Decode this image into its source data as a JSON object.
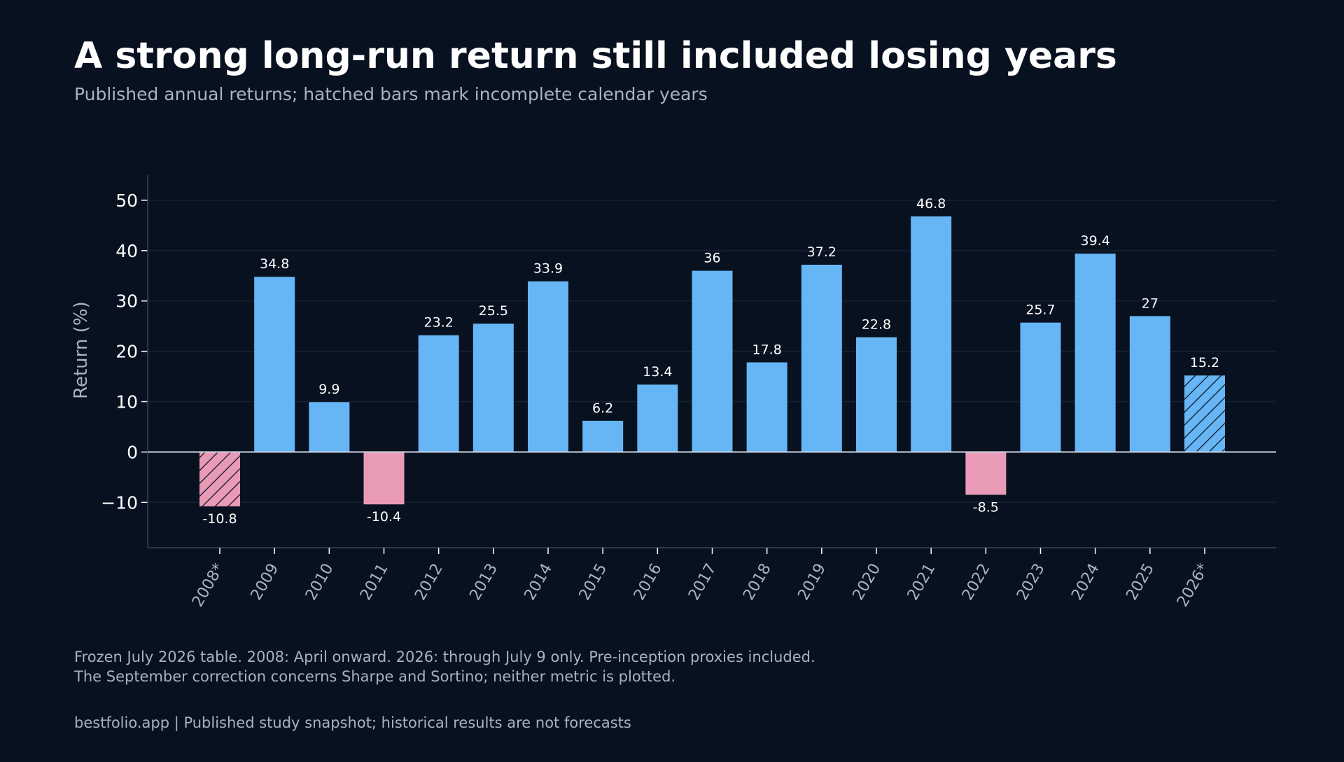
{
  "title": "A strong long-run return still included losing years",
  "subtitle": "Published annual returns; hatched bars mark incomplete calendar years",
  "notes": {
    "line1": "Frozen July 2026 table. 2008: April onward. 2026: through July 9 only. Pre-inception proxies included.",
    "line2": "The September correction concerns Sharpe and Sortino; neither metric is plotted."
  },
  "footer": "bestfolio.app  |  Published study snapshot; historical results are not forecasts",
  "colors": {
    "background": "#08111f",
    "positive": "#66b5f5",
    "negative": "#e99ab7",
    "axis": "#3a4556",
    "grid": "#162233",
    "text": "#ffffff",
    "muted": "#a7b3c2"
  },
  "chart_data": {
    "type": "bar",
    "categories": [
      "2008*",
      "2009",
      "2010",
      "2011",
      "2012",
      "2013",
      "2014",
      "2015",
      "2016",
      "2017",
      "2018",
      "2019",
      "2020",
      "2021",
      "2022",
      "2023",
      "2024",
      "2025",
      "2026*"
    ],
    "values": [
      -10.8,
      34.8,
      9.9,
      -10.4,
      23.2,
      25.5,
      33.9,
      6.2,
      13.4,
      36,
      17.8,
      37.2,
      22.8,
      46.8,
      -8.5,
      25.7,
      39.4,
      27,
      15.2
    ],
    "value_labels": [
      "-10.8",
      "34.8",
      "9.9",
      "-10.4",
      "23.2",
      "25.5",
      "33.9",
      "6.2",
      "13.4",
      "36",
      "17.8",
      "37.2",
      "22.8",
      "46.8",
      "-8.5",
      "25.7",
      "39.4",
      "27",
      "15.2"
    ],
    "incomplete": [
      true,
      false,
      false,
      false,
      false,
      false,
      false,
      false,
      false,
      false,
      false,
      false,
      false,
      false,
      false,
      false,
      false,
      false,
      true
    ],
    "ylabel": "Return (%)",
    "xlabel": "",
    "ylim": [
      -19,
      55
    ],
    "yticks": [
      -10,
      0,
      10,
      20,
      30,
      40,
      50
    ],
    "ytick_labels": [
      "−10",
      "0",
      "10",
      "20",
      "30",
      "40",
      "50"
    ],
    "grid": true,
    "legend": "none"
  }
}
